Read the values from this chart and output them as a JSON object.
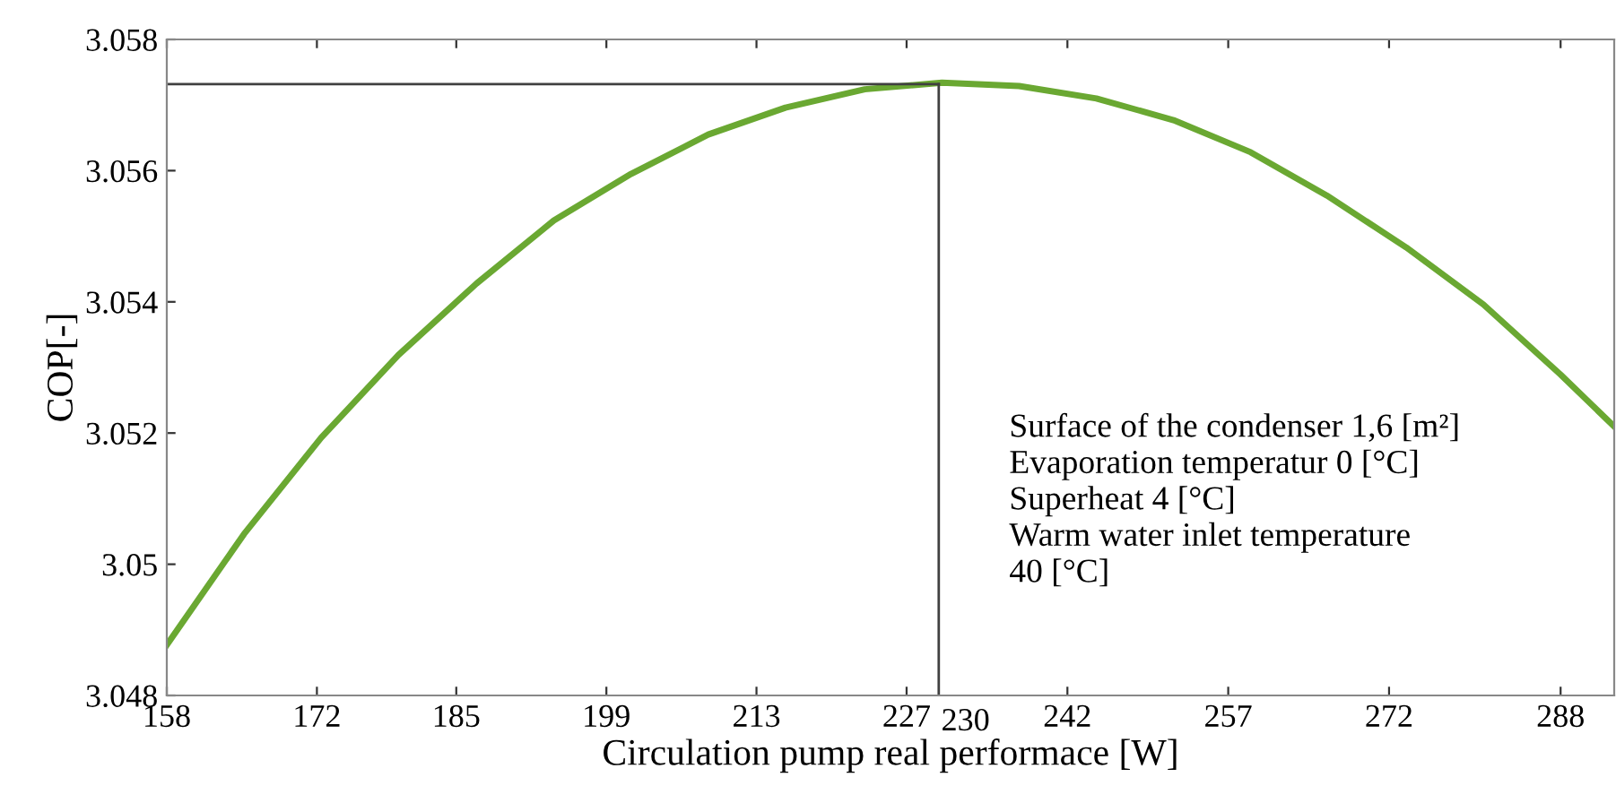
{
  "chart_data": {
    "type": "line",
    "xlabel": "Circulation pump real performace [W]",
    "ylabel": "COP[-]",
    "x": [
      158,
      165.2,
      172.4,
      179.6,
      186.9,
      194.1,
      201.3,
      208.5,
      215.7,
      223.1,
      230.3,
      237.5,
      244.7,
      251.9,
      259.1,
      266.2,
      273.6,
      280.8,
      288,
      293
    ],
    "series": [
      {
        "color": "#6aa832",
        "values": [
          3.04877,
          3.05046,
          3.05193,
          3.05319,
          3.05428,
          3.05524,
          3.05595,
          3.05655,
          3.05696,
          3.05724,
          3.05734,
          3.05729,
          3.0571,
          3.05677,
          3.05628,
          3.05562,
          3.05483,
          3.05396,
          3.05289,
          3.0521
        ]
      }
    ],
    "xlim": [
      158,
      293
    ],
    "xticks": [
      158,
      172,
      185,
      199,
      213,
      227,
      242,
      257,
      272,
      288
    ],
    "ylim": [
      3.048,
      3.058
    ],
    "yticks": [
      3.048,
      3.05,
      3.052,
      3.054,
      3.056,
      3.058
    ],
    "ref_lines": [
      {
        "axis": "x",
        "value": 230,
        "label": "230",
        "color": "#404040"
      },
      {
        "axis": "y",
        "value": 3.05732,
        "color": "#404040"
      }
    ],
    "annotations": [
      "Surface of the condenser 1,6 [m²]\nEvaporation temperatur 0 [°C]\nSuperheat 4 [°C]\nWarm water inlet temperature\n40 [°C]"
    ],
    "marker": "none",
    "line_style": "solid",
    "grid": false
  }
}
